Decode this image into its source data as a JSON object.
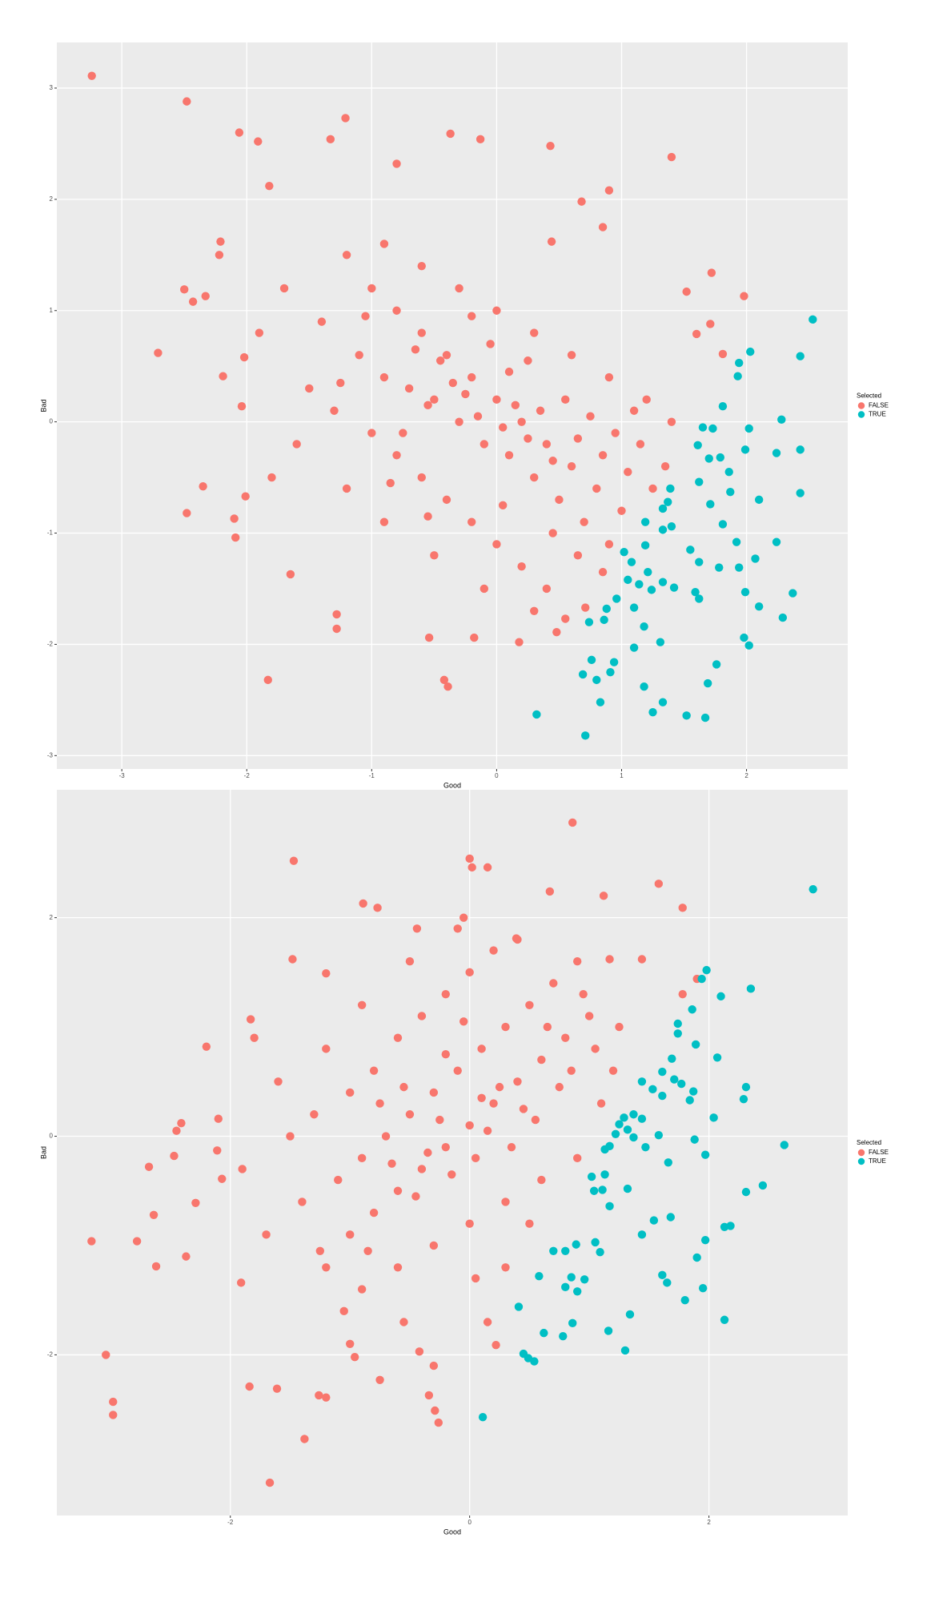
{
  "chart_data": [
    {
      "type": "scatter",
      "x_label": "Good",
      "y_label": "Bad",
      "legend_title": "Selected",
      "legend": "right",
      "grid": true,
      "xlim": [
        -3.52,
        2.81
      ],
      "ylim": [
        -3.12,
        3.41
      ],
      "xticks": [
        -3,
        -2,
        -1,
        0,
        1,
        2
      ],
      "yticks": [
        -3,
        -2,
        -1,
        0,
        1,
        2,
        3
      ],
      "series": [
        {
          "name": "FALSE",
          "color": "#F8766D",
          "x": [
            -3.24,
            -2.48,
            -2.06,
            -1.91,
            -1.21,
            -1.33,
            -0.8,
            -0.37,
            -0.13,
            0.43,
            1.4,
            -1.82,
            -2.21,
            -2.22,
            -2.5,
            -2.43,
            -2.33,
            -2.71,
            -2.02,
            -2.19,
            -2.04,
            -2.35,
            -2.48,
            -2.1,
            -2.09,
            -2.01,
            -1.83,
            -1.65,
            -1.28,
            -1.28,
            -0.42,
            -0.39,
            -0.54,
            -0.18,
            0.18,
            0.48,
            0.55,
            0.71,
            1.98,
            1.72,
            1.52,
            1.6,
            1.71,
            1.81,
            0.44,
            0.9,
            0.68,
            0.85,
            -1.2,
            -1.0,
            -0.8,
            -0.6,
            -0.4,
            -0.2,
            0,
            0.2,
            0.4,
            0.6,
            0.8,
            1.0,
            -1.4,
            -1.1,
            -0.9,
            -0.7,
            -0.5,
            -0.3,
            -0.1,
            0.1,
            0.3,
            0.5,
            0.7,
            0.9,
            -1.5,
            -1.3,
            -1.0,
            -0.8,
            -0.6,
            -0.4,
            -0.2,
            0.0,
            0.2,
            0.4,
            -0.9,
            -0.6,
            -0.3,
            0.0,
            0.3,
            0.6,
            0.9,
            1.2,
            1.4,
            -1.7,
            -1.9,
            -1.6,
            -1.8,
            -1.2,
            -0.9,
            -0.5,
            -0.1,
            0.3,
            -0.45,
            -0.35,
            -0.55,
            -0.25,
            -0.15,
            0.05,
            0.15,
            0.25,
            0.35,
            0.45,
            -0.65,
            -0.75,
            0.55,
            0.65,
            0.75,
            0.85,
            1.05,
            1.15,
            1.25,
            1.35,
            -0.05,
            -0.2,
            0.1,
            0.25,
            -1.05,
            -1.25,
            -0.85,
            -0.55,
            0.05,
            0.45,
            0.65,
            0.85,
            0.95,
            1.1
          ],
          "y": [
            3.11,
            2.88,
            2.6,
            2.52,
            2.73,
            2.54,
            2.32,
            2.59,
            2.54,
            2.48,
            2.38,
            2.12,
            1.62,
            1.5,
            1.19,
            1.08,
            1.13,
            0.62,
            0.58,
            0.41,
            0.14,
            -0.58,
            -0.82,
            -0.87,
            -1.04,
            -0.67,
            -2.32,
            -1.37,
            -1.73,
            -1.86,
            -2.32,
            -2.38,
            -1.94,
            -1.94,
            -1.98,
            -1.89,
            -1.77,
            -1.67,
            1.13,
            1.34,
            1.17,
            0.79,
            0.88,
            0.61,
            1.62,
            2.08,
            1.98,
            1.75,
            1.5,
            1.2,
            1.0,
            0.8,
            0.6,
            0.4,
            0.2,
            0,
            -0.2,
            -0.4,
            -0.6,
            -0.8,
            0.9,
            0.6,
            0.4,
            0.3,
            0.2,
            0.0,
            -0.2,
            -0.3,
            -0.5,
            -0.7,
            -0.9,
            -1.1,
            0.3,
            0.1,
            -0.1,
            -0.3,
            -0.5,
            -0.7,
            -0.9,
            -1.1,
            -1.3,
            -1.5,
            1.6,
            1.4,
            1.2,
            1.0,
            0.8,
            0.6,
            0.4,
            0.2,
            0.0,
            1.2,
            0.8,
            -0.2,
            -0.5,
            -0.6,
            -0.9,
            -1.2,
            -1.5,
            -1.7,
            0.55,
            0.35,
            0.15,
            0.25,
            0.05,
            -0.05,
            0.15,
            -0.15,
            0.1,
            -0.35,
            0.65,
            -0.1,
            0.2,
            -0.15,
            0.05,
            -0.3,
            -0.45,
            -0.2,
            -0.6,
            -0.4,
            0.7,
            0.95,
            0.45,
            0.55,
            0.95,
            0.35,
            -0.55,
            -0.85,
            -0.75,
            -1.0,
            -1.2,
            -1.35,
            -0.1,
            0.1
          ]
        },
        {
          "name": "TRUE",
          "color": "#00BFC4",
          "x": [
            2.53,
            2.43,
            2.03,
            1.94,
            1.93,
            1.81,
            2.28,
            2.43,
            2.24,
            2.02,
            1.99,
            2.43,
            2.1,
            1.65,
            1.61,
            1.73,
            1.7,
            1.79,
            1.86,
            1.87,
            1.71,
            1.62,
            1.39,
            1.37,
            1.33,
            1.4,
            1.33,
            1.19,
            1.81,
            1.92,
            2.24,
            1.55,
            1.62,
            1.78,
            1.94,
            2.07,
            1.19,
            1.02,
            1.08,
            1.21,
            1.05,
            1.14,
            1.24,
            1.33,
            1.42,
            1.59,
            1.62,
            1.99,
            2.1,
            2.37,
            2.29,
            1.98,
            2.02,
            0.96,
            1.1,
            0.88,
            0.74,
            0.86,
            1.18,
            1.31,
            1.1,
            0.94,
            0.76,
            0.91,
            0.69,
            0.8,
            1.76,
            1.69,
            1.18,
            0.83,
            1.33,
            1.25,
            1.52,
            1.67,
            0.32,
            0.71
          ],
          "y": [
            0.92,
            0.59,
            0.63,
            0.53,
            0.41,
            0.14,
            0.02,
            -0.25,
            -0.28,
            -0.06,
            -0.25,
            -0.64,
            -0.7,
            -0.05,
            -0.21,
            -0.06,
            -0.33,
            -0.32,
            -0.45,
            -0.63,
            -0.74,
            -0.54,
            -0.6,
            -0.72,
            -0.78,
            -0.94,
            -0.97,
            -0.9,
            -0.92,
            -1.08,
            -1.08,
            -1.15,
            -1.26,
            -1.31,
            -1.31,
            -1.23,
            -1.11,
            -1.17,
            -1.26,
            -1.35,
            -1.42,
            -1.46,
            -1.51,
            -1.44,
            -1.49,
            -1.53,
            -1.59,
            -1.53,
            -1.66,
            -1.54,
            -1.76,
            -1.94,
            -2.01,
            -1.59,
            -1.67,
            -1.68,
            -1.8,
            -1.78,
            -1.84,
            -1.98,
            -2.03,
            -2.16,
            -2.14,
            -2.25,
            -2.27,
            -2.32,
            -2.18,
            -2.35,
            -2.38,
            -2.52,
            -2.52,
            -2.61,
            -2.64,
            -2.66,
            -2.63,
            -2.82
          ]
        }
      ]
    },
    {
      "type": "scatter",
      "x_label": "Good",
      "y_label": "Bad",
      "legend_title": "Selected",
      "legend": "right",
      "grid": true,
      "xlim": [
        -3.45,
        3.16
      ],
      "ylim": [
        -3.47,
        3.17
      ],
      "xticks": [
        -2,
        0,
        2
      ],
      "yticks": [
        -2,
        0,
        2
      ],
      "series": [
        {
          "name": "FALSE",
          "color": "#F8766D",
          "x": [
            0.86,
            -1.47,
            0.0,
            0.02,
            0.15,
            0.67,
            1.12,
            1.58,
            1.78,
            -0.89,
            -0.77,
            -2.2,
            -1.83,
            -3.16,
            -3.04,
            -2.98,
            -2.98,
            -1.67,
            -1.38,
            -0.26,
            -0.29,
            -0.34,
            -2.68,
            -2.64,
            -2.62,
            -2.78,
            -2.37,
            -2.29,
            -2.47,
            -2.45,
            -2.41,
            -2.1,
            -2.11,
            -2.07,
            -1.91,
            -1.84,
            -1.61,
            -1.26,
            -1.2,
            -0.75,
            -0.96,
            0.22,
            -0.42,
            -1.48,
            -1.2,
            1.17,
            1.44,
            1.9,
            1.78,
            -0.44,
            -0.05,
            0.39,
            -1.2,
            -1.0,
            -0.8,
            -0.6,
            -0.4,
            -0.2,
            0,
            0.2,
            0.4,
            0.6,
            0.8,
            1.0,
            -1.4,
            -1.1,
            -0.9,
            -0.7,
            -0.5,
            -0.3,
            -0.1,
            0.1,
            0.3,
            0.5,
            0.7,
            0.9,
            -1.5,
            -1.3,
            -1.0,
            -0.8,
            -0.6,
            -0.4,
            -0.2,
            0.0,
            0.2,
            -0.9,
            -0.6,
            -0.3,
            0.0,
            0.3,
            0.6,
            0.9,
            1.1,
            1.2,
            -1.7,
            -1.9,
            -1.6,
            -1.8,
            -1.2,
            -0.9,
            -0.5,
            -0.1,
            0.4,
            -0.45,
            -0.35,
            -0.55,
            -0.25,
            -0.15,
            0.05,
            0.15,
            0.25,
            0.35,
            0.45,
            -0.65,
            -0.75,
            0.55,
            0.65,
            0.75,
            0.85,
            1.05,
            0.95,
            1.25,
            0.5,
            -0.05,
            -0.2,
            0.1,
            -1.05,
            -1.25,
            -0.85,
            -0.55,
            0.05,
            0.3,
            -0.3,
            0.15,
            -1.0
          ],
          "y": [
            2.87,
            2.52,
            2.54,
            2.46,
            2.46,
            2.24,
            2.2,
            2.31,
            2.09,
            2.13,
            2.09,
            0.82,
            1.07,
            -0.96,
            -2.0,
            -2.43,
            -2.55,
            -3.17,
            -2.77,
            -2.62,
            -2.51,
            -2.37,
            -0.28,
            -0.72,
            -1.19,
            -0.96,
            -1.1,
            -0.61,
            -0.18,
            0.05,
            0.12,
            0.16,
            -0.13,
            -0.39,
            -1.34,
            -2.29,
            -2.31,
            -2.37,
            -2.39,
            -2.23,
            -2.02,
            -1.91,
            -1.97,
            1.62,
            1.49,
            1.62,
            1.62,
            1.44,
            1.3,
            1.9,
            2.0,
            1.81,
            -1.2,
            -0.9,
            -0.7,
            -0.5,
            -0.3,
            -0.1,
            0.1,
            0.3,
            0.5,
            0.7,
            0.9,
            1.1,
            -0.6,
            -0.4,
            -0.2,
            0.0,
            0.2,
            0.4,
            0.6,
            0.8,
            1.0,
            1.2,
            1.4,
            1.6,
            0.0,
            0.2,
            0.4,
            0.6,
            0.9,
            1.1,
            1.3,
            1.5,
            1.7,
            -1.4,
            -1.2,
            -1.0,
            -0.8,
            -0.6,
            -0.4,
            -0.2,
            0.3,
            0.6,
            -0.9,
            -0.3,
            0.5,
            0.9,
            0.8,
            1.2,
            1.6,
            1.9,
            1.8,
            -0.55,
            -0.15,
            0.45,
            0.15,
            -0.35,
            -0.2,
            0.05,
            0.45,
            -0.1,
            0.25,
            -0.25,
            0.3,
            0.15,
            1.0,
            0.45,
            0.6,
            0.8,
            1.3,
            1.0,
            -0.8,
            1.05,
            0.75,
            0.35,
            -1.6,
            -1.05,
            -1.05,
            -1.7,
            -1.3,
            -1.2,
            -2.1,
            -1.7,
            -1.9
          ]
        },
        {
          "name": "TRUE",
          "color": "#00BFC4",
          "x": [
            2.87,
            1.98,
            1.94,
            2.35,
            2.1,
            1.86,
            1.74,
            1.74,
            2.07,
            1.89,
            1.69,
            1.61,
            1.44,
            1.71,
            1.77,
            1.87,
            2.31,
            2.29,
            1.61,
            1.53,
            1.84,
            2.04,
            1.37,
            1.44,
            1.29,
            1.25,
            1.32,
            1.37,
            1.22,
            1.47,
            1.58,
            1.66,
            1.88,
            1.97,
            2.63,
            1.17,
            1.13,
            1.02,
            1.13,
            1.04,
            1.11,
            1.32,
            1.17,
            1.54,
            1.44,
            1.68,
            2.31,
            2.45,
            2.13,
            2.18,
            1.97,
            1.9,
            1.61,
            1.65,
            1.95,
            1.8,
            0.89,
            1.05,
            1.09,
            0.8,
            0.7,
            0.58,
            0.85,
            0.96,
            0.8,
            0.9,
            0.41,
            0.86,
            0.62,
            0.78,
            1.16,
            1.34,
            1.3,
            2.13,
            0.45,
            0.49,
            0.54,
            0.11
          ],
          "y": [
            2.26,
            1.52,
            1.44,
            1.35,
            1.28,
            1.16,
            1.03,
            0.94,
            0.72,
            0.84,
            0.71,
            0.59,
            0.5,
            0.52,
            0.48,
            0.41,
            0.45,
            0.34,
            0.37,
            0.43,
            0.33,
            0.17,
            0.2,
            0.16,
            0.17,
            0.11,
            0.06,
            -0.01,
            0.02,
            -0.1,
            0.01,
            -0.24,
            -0.03,
            -0.17,
            -0.08,
            -0.09,
            -0.12,
            -0.37,
            -0.35,
            -0.5,
            -0.49,
            -0.48,
            -0.64,
            -0.77,
            -0.9,
            -0.74,
            -0.51,
            -0.45,
            -0.83,
            -0.82,
            -0.95,
            -1.11,
            -1.27,
            -1.34,
            -1.39,
            -1.5,
            -0.99,
            -0.97,
            -1.06,
            -1.05,
            -1.05,
            -1.28,
            -1.29,
            -1.31,
            -1.38,
            -1.42,
            -1.56,
            -1.71,
            -1.8,
            -1.83,
            -1.78,
            -1.63,
            -1.96,
            -1.68,
            -1.99,
            -2.03,
            -2.06,
            -2.57
          ]
        }
      ]
    }
  ]
}
